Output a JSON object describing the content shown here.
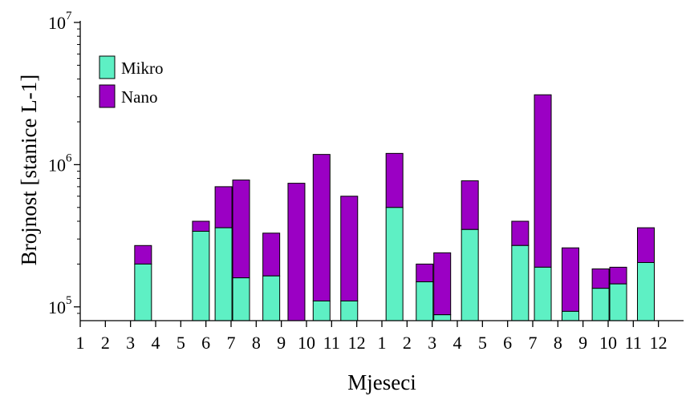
{
  "chart_data": {
    "type": "bar",
    "stacked": true,
    "yscale": "log",
    "ylim": [
      80000,
      10000000
    ],
    "ylabel": "Brojnost [stanice L-1]",
    "xlabel": "Mjeseci",
    "x_tick_labels": [
      "1",
      "2",
      "3",
      "4",
      "5",
      "6",
      "7",
      "8",
      "9",
      "10",
      "11",
      "12",
      "1",
      "2",
      "3",
      "4",
      "5",
      "6",
      "7",
      "8",
      "9",
      "10",
      "11",
      "12"
    ],
    "y_ticks": [
      {
        "value": 100000,
        "base": "10",
        "exp": "5"
      },
      {
        "value": 1000000,
        "base": "10",
        "exp": "6"
      },
      {
        "value": 10000000,
        "base": "10",
        "exp": "7"
      }
    ],
    "legend": {
      "position": "top-left"
    },
    "series": [
      {
        "name": "Mikro",
        "color": "#5ef0c4"
      },
      {
        "name": "Nano",
        "color": "#9b00c4"
      }
    ],
    "bars": [
      {
        "x": 3.5,
        "mikro": 200000,
        "total": 270000
      },
      {
        "x": 5.8,
        "mikro": 340000,
        "total": 400000
      },
      {
        "x": 6.7,
        "mikro": 360000,
        "total": 700000
      },
      {
        "x": 7.4,
        "mikro": 160000,
        "total": 780000
      },
      {
        "x": 8.6,
        "mikro": 165000,
        "total": 330000
      },
      {
        "x": 9.6,
        "mikro": 80000,
        "total": 740000
      },
      {
        "x": 10.6,
        "mikro": 110000,
        "total": 1180000
      },
      {
        "x": 11.7,
        "mikro": 110000,
        "total": 600000
      },
      {
        "x": 13.5,
        "mikro": 500000,
        "total": 1200000
      },
      {
        "x": 14.7,
        "mikro": 150000,
        "total": 200000
      },
      {
        "x": 15.4,
        "mikro": 88000,
        "total": 240000
      },
      {
        "x": 16.5,
        "mikro": 350000,
        "total": 770000
      },
      {
        "x": 18.5,
        "mikro": 270000,
        "total": 400000
      },
      {
        "x": 19.4,
        "mikro": 190000,
        "total": 3100000
      },
      {
        "x": 20.5,
        "mikro": 93000,
        "total": 260000
      },
      {
        "x": 21.7,
        "mikro": 135000,
        "total": 185000
      },
      {
        "x": 22.4,
        "mikro": 145000,
        "total": 190000
      },
      {
        "x": 23.5,
        "mikro": 205000,
        "total": 360000
      }
    ]
  }
}
